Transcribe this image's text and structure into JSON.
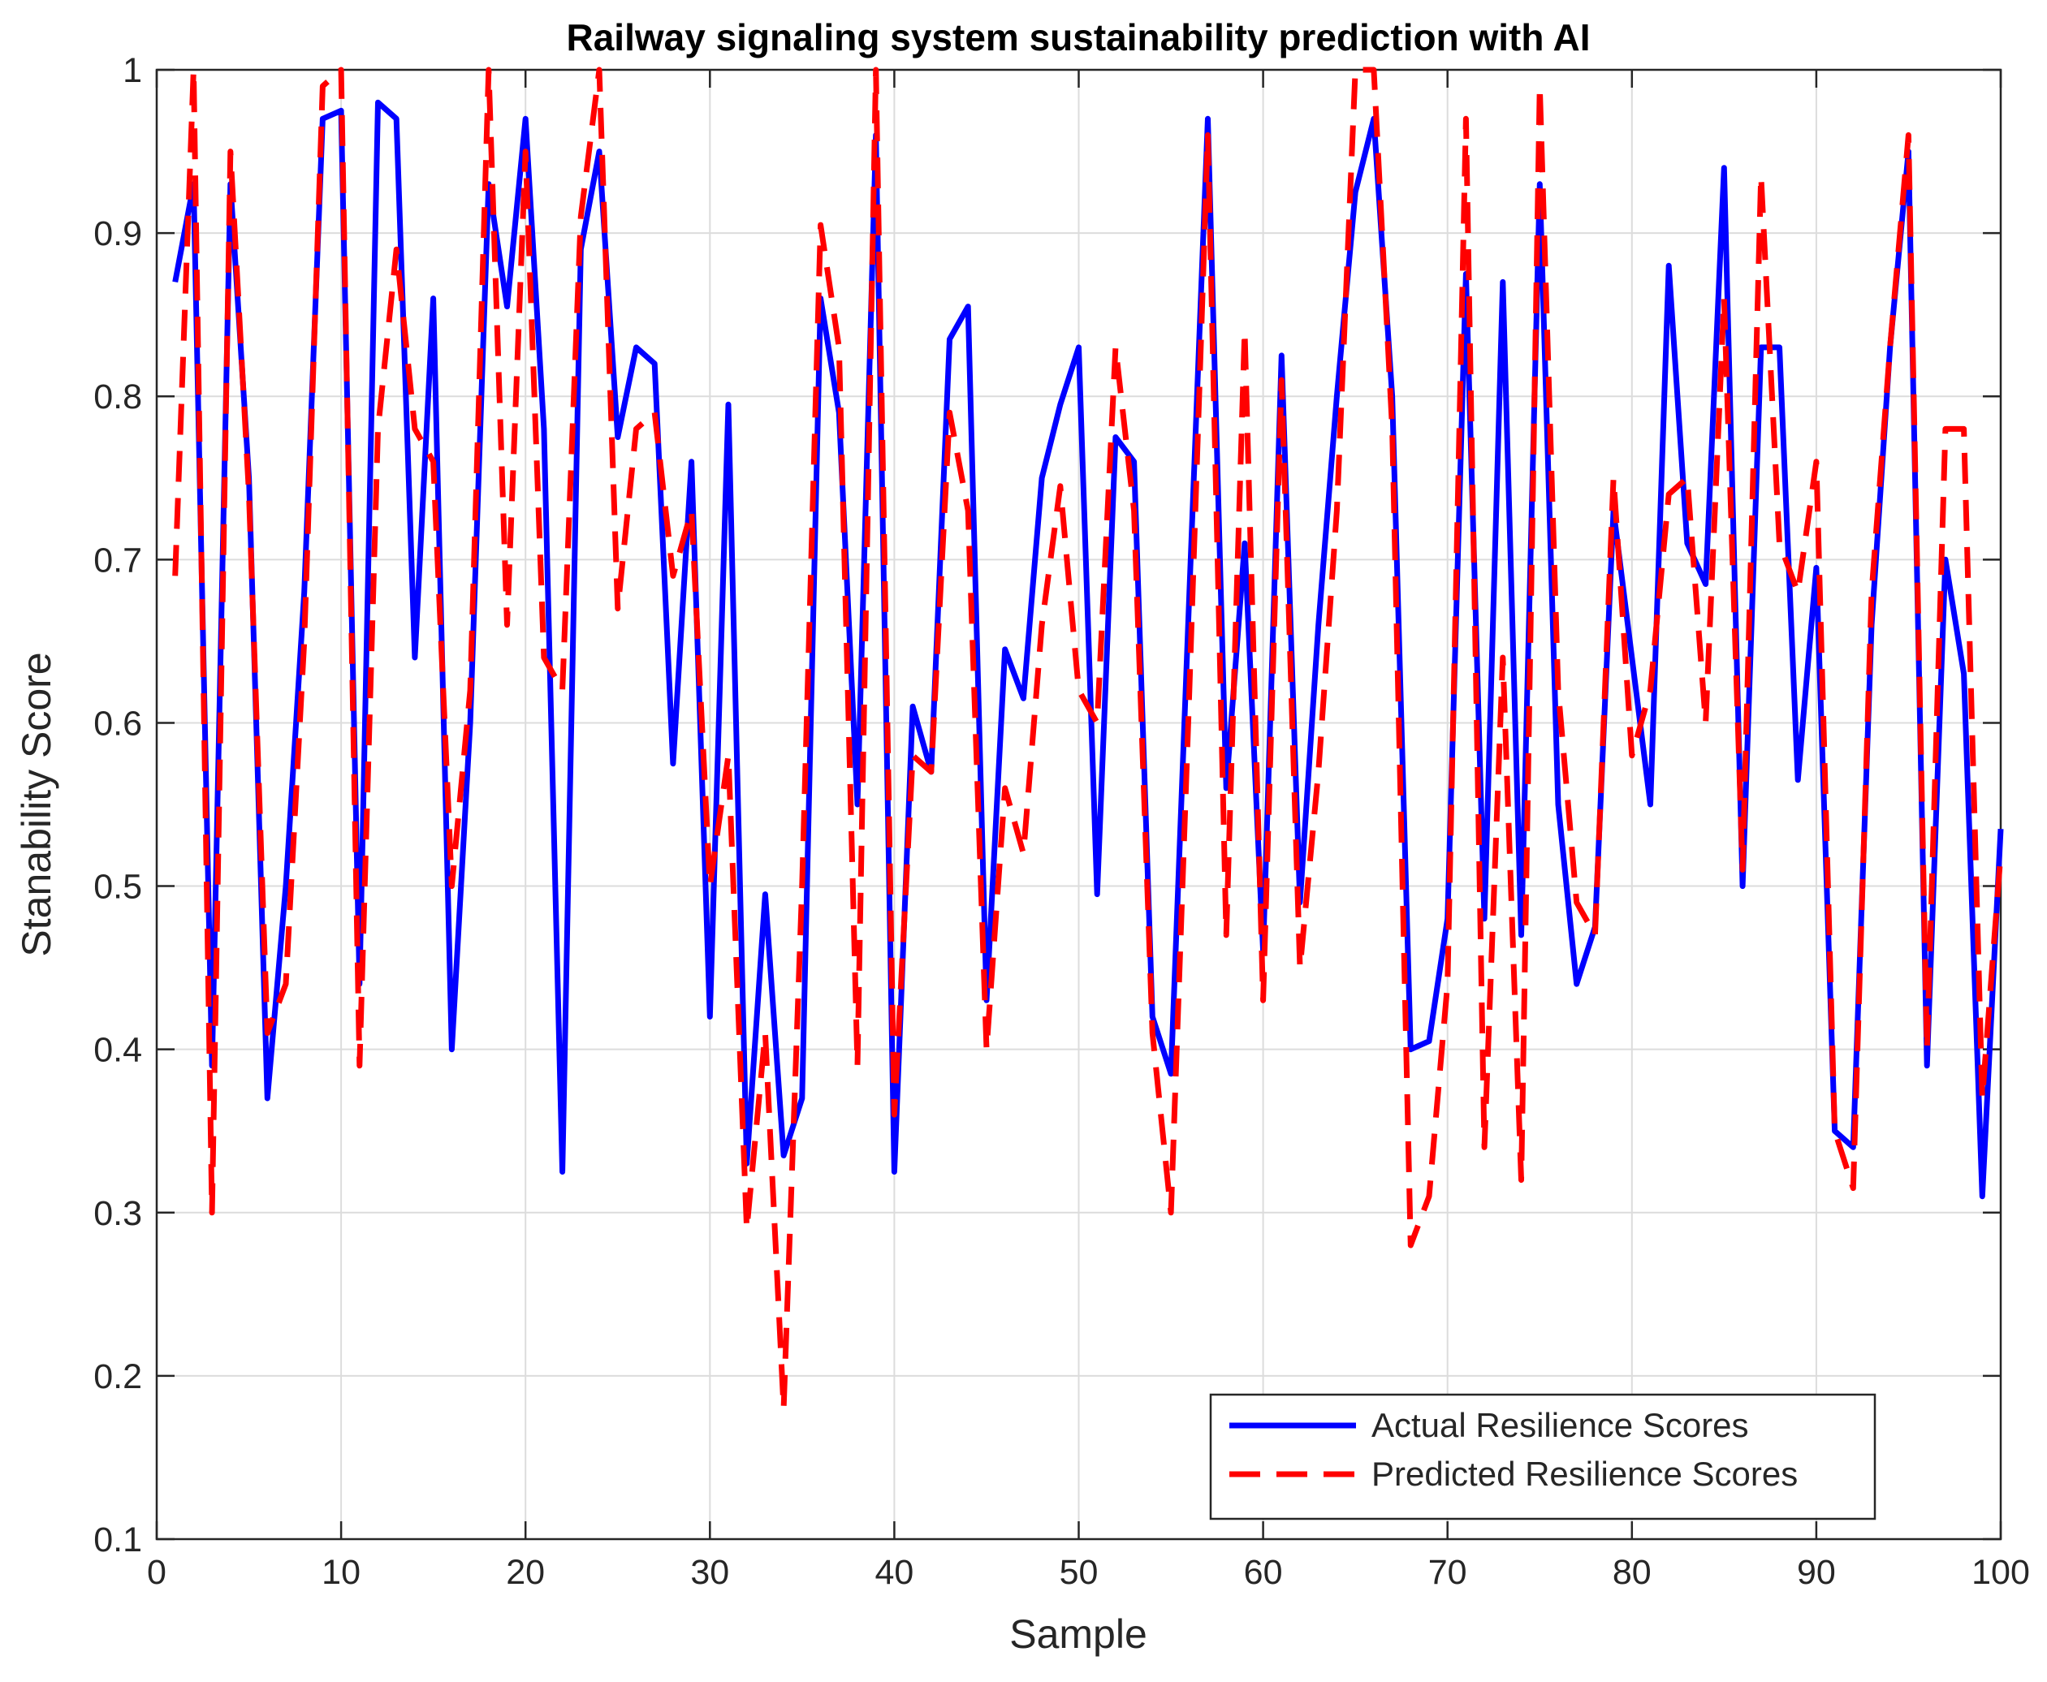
{
  "chart_data": {
    "type": "line",
    "title": "Railway signaling system sustainability prediction with AI",
    "xlabel": "Sample",
    "ylabel": "Stanability Score",
    "xlim": [
      0,
      100
    ],
    "ylim": [
      0.1,
      1
    ],
    "xticks": [
      0,
      10,
      20,
      30,
      40,
      50,
      60,
      70,
      80,
      90,
      100
    ],
    "yticks": [
      0.1,
      0.2,
      0.3,
      0.4,
      0.5,
      0.6,
      0.7,
      0.8,
      0.9,
      1
    ],
    "xtick_labels": [
      "0",
      "10",
      "20",
      "30",
      "40",
      "50",
      "60",
      "70",
      "80",
      "90",
      "100"
    ],
    "ytick_labels": [
      "0.1",
      "0.2",
      "0.3",
      "0.4",
      "0.5",
      "0.6",
      "0.7",
      "0.8",
      "0.9",
      "1"
    ],
    "grid": true,
    "legend_position": "bottom-right",
    "x": [
      1,
      2,
      3,
      4,
      5,
      6,
      7,
      8,
      9,
      10,
      11,
      12,
      13,
      14,
      15,
      16,
      17,
      18,
      19,
      20,
      21,
      22,
      23,
      24,
      25,
      26,
      27,
      28,
      29,
      30,
      31,
      32,
      33,
      34,
      35,
      36,
      37,
      38,
      39,
      40,
      41,
      42,
      43,
      44,
      45,
      46,
      47,
      48,
      49,
      50,
      51,
      52,
      53,
      54,
      55,
      56,
      57,
      58,
      59,
      60,
      61,
      62,
      63,
      64,
      65,
      66,
      67,
      68,
      69,
      70,
      71,
      72,
      73,
      74,
      75,
      76,
      77,
      78,
      79,
      80,
      81,
      82,
      83,
      84,
      85,
      86,
      87,
      88,
      89,
      90,
      91,
      92,
      93,
      94,
      95,
      96,
      97,
      98,
      99,
      100
    ],
    "series": [
      {
        "name": "Actual Resilience Scores",
        "color": "#0000ff",
        "style": "solid",
        "values": [
          0.87,
          0.93,
          0.39,
          0.93,
          0.75,
          0.37,
          0.5,
          0.68,
          0.97,
          0.975,
          0.44,
          0.98,
          0.97,
          0.64,
          0.86,
          0.4,
          0.6,
          0.93,
          0.855,
          0.97,
          0.78,
          0.325,
          0.89,
          0.95,
          0.775,
          0.83,
          0.82,
          0.575,
          0.76,
          0.42,
          0.795,
          0.33,
          0.495,
          0.335,
          0.37,
          0.86,
          0.79,
          0.55,
          0.96,
          0.325,
          0.61,
          0.57,
          0.835,
          0.855,
          0.43,
          0.645,
          0.615,
          0.75,
          0.795,
          0.83,
          0.495,
          0.775,
          0.76,
          0.42,
          0.385,
          0.68,
          0.97,
          0.56,
          0.71,
          0.46,
          0.825,
          0.49,
          0.66,
          0.8,
          0.925,
          0.97,
          0.8,
          0.4,
          0.405,
          0.48,
          0.875,
          0.48,
          0.87,
          0.47,
          0.93,
          0.55,
          0.44,
          0.475,
          0.73,
          0.64,
          0.55,
          0.88,
          0.71,
          0.685,
          0.94,
          0.5,
          0.83,
          0.83,
          0.565,
          0.695,
          0.35,
          0.34,
          0.66,
          0.83,
          0.95,
          0.39,
          0.7,
          0.63,
          0.31,
          0.535
        ]
      },
      {
        "name": "Predicted Resilience Scores",
        "color": "#ff0000",
        "style": "dashed",
        "values": [
          0.69,
          1.0,
          0.3,
          0.95,
          0.74,
          0.41,
          0.44,
          0.65,
          0.99,
          1.0,
          0.39,
          0.78,
          0.89,
          0.78,
          0.76,
          0.5,
          0.62,
          1.0,
          0.66,
          0.95,
          0.64,
          0.62,
          0.91,
          1.0,
          0.67,
          0.78,
          0.79,
          0.69,
          0.73,
          0.5,
          0.58,
          0.29,
          0.41,
          0.18,
          0.5,
          0.905,
          0.83,
          0.39,
          1.0,
          0.36,
          0.58,
          0.57,
          0.79,
          0.73,
          0.4,
          0.56,
          0.52,
          0.66,
          0.745,
          0.62,
          0.6,
          0.83,
          0.73,
          0.41,
          0.3,
          0.62,
          0.96,
          0.47,
          0.84,
          0.43,
          0.81,
          0.45,
          0.57,
          0.73,
          1.0,
          1.0,
          0.78,
          0.28,
          0.31,
          0.44,
          0.97,
          0.34,
          0.64,
          0.32,
          0.99,
          0.62,
          0.49,
          0.47,
          0.75,
          0.58,
          0.62,
          0.74,
          0.75,
          0.6,
          0.86,
          0.51,
          0.935,
          0.71,
          0.68,
          0.76,
          0.35,
          0.315,
          0.68,
          0.83,
          0.96,
          0.4,
          0.78,
          0.78,
          0.37,
          0.52
        ]
      }
    ]
  }
}
